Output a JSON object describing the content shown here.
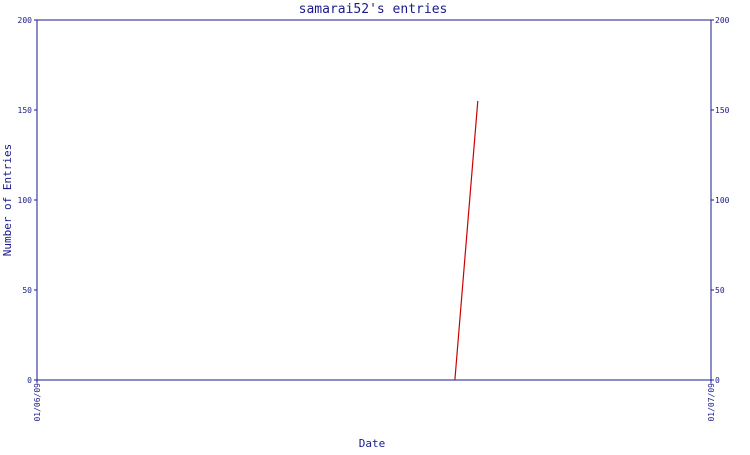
{
  "chart_data": {
    "type": "line",
    "title": "samarai52's entries",
    "xlabel": "Date",
    "ylabel": "Number of Entries",
    "x_ticks": [
      "01/06/09",
      "01/07/09"
    ],
    "y_ticks": [
      0,
      50,
      100,
      150,
      200
    ],
    "ylim": [
      0,
      200
    ],
    "grid": false,
    "right_axis": true,
    "series": [
      {
        "color": "#cc0000",
        "points": [
          {
            "x": 0.62,
            "y": 0
          },
          {
            "x": 0.654,
            "y": 155
          }
        ]
      }
    ]
  },
  "colors": {
    "axis": "#1a1a8c",
    "line": "#cc0000",
    "background": "#ffffff"
  }
}
